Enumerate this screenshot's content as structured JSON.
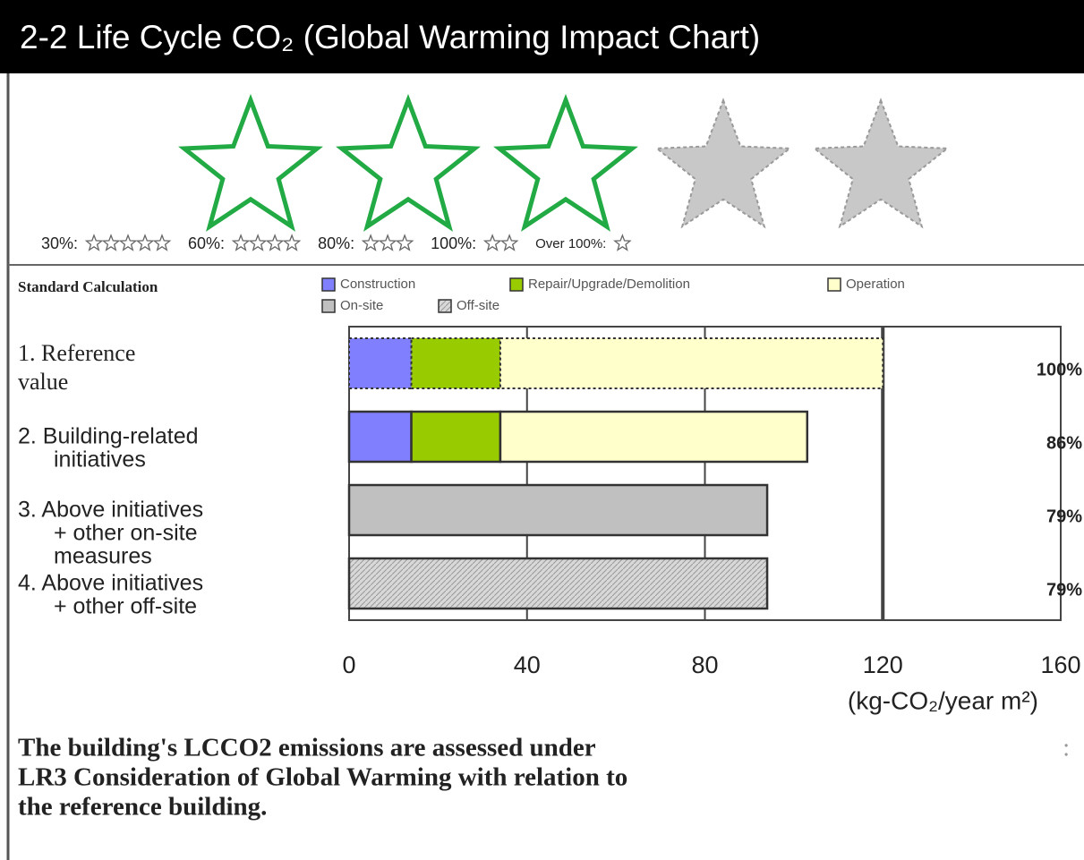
{
  "chart_data": {
    "type": "stacked-barh",
    "title": "2-2 Life Cycle CO₂ (Global Warming Impact Chart)",
    "rating": 3,
    "max_rating": 5,
    "rating_color": "#22aa44",
    "star_scale": [
      {
        "label": "30%:",
        "stars": 5
      },
      {
        "label": "60%:",
        "stars": 4
      },
      {
        "label": "80%:",
        "stars": 3
      },
      {
        "label": "100%:",
        "stars": 2
      },
      {
        "label": "Over 100%:",
        "stars": 1
      }
    ],
    "legend_title": "Standard Calculation",
    "categories": [
      [
        "1. Reference",
        "value"
      ],
      [
        "2. Building-related",
        "initiatives"
      ],
      [
        "3. Above initiatives",
        "+ other on-site",
        "measures"
      ],
      [
        "4. Above initiatives",
        "+ other off-site"
      ]
    ],
    "series": [
      {
        "name": "Construction",
        "color": "#8080ff",
        "values": [
          14,
          14,
          null,
          null
        ]
      },
      {
        "name": "Repair/Upgrade/Demolition",
        "color": "#99cc00",
        "values": [
          20,
          20,
          null,
          null
        ]
      },
      {
        "name": "Operation",
        "color": "#ffffcc",
        "values": [
          86,
          69,
          null,
          null
        ]
      },
      {
        "name": "On-site",
        "color": "#c0c0c0",
        "values": [
          null,
          null,
          94,
          null
        ]
      },
      {
        "name": "Off-site",
        "color": "#d8d8d8",
        "hatch": true,
        "values": [
          null,
          null,
          null,
          94
        ]
      }
    ],
    "percent_labels": [
      "100%",
      "86%",
      "79%",
      "79%"
    ],
    "xlim": [
      0,
      160
    ],
    "xticks": [
      0,
      40,
      80,
      120,
      160
    ],
    "reference_line": 120,
    "grid": true,
    "xlabel": "(kg-CO₂/year m²)",
    "footnote": [
      "The building's LCCO2 emissions are assessed under",
      "LR3 Consideration of Global Warming with relation to",
      "the reference building."
    ],
    "footnote_mark": ":"
  }
}
